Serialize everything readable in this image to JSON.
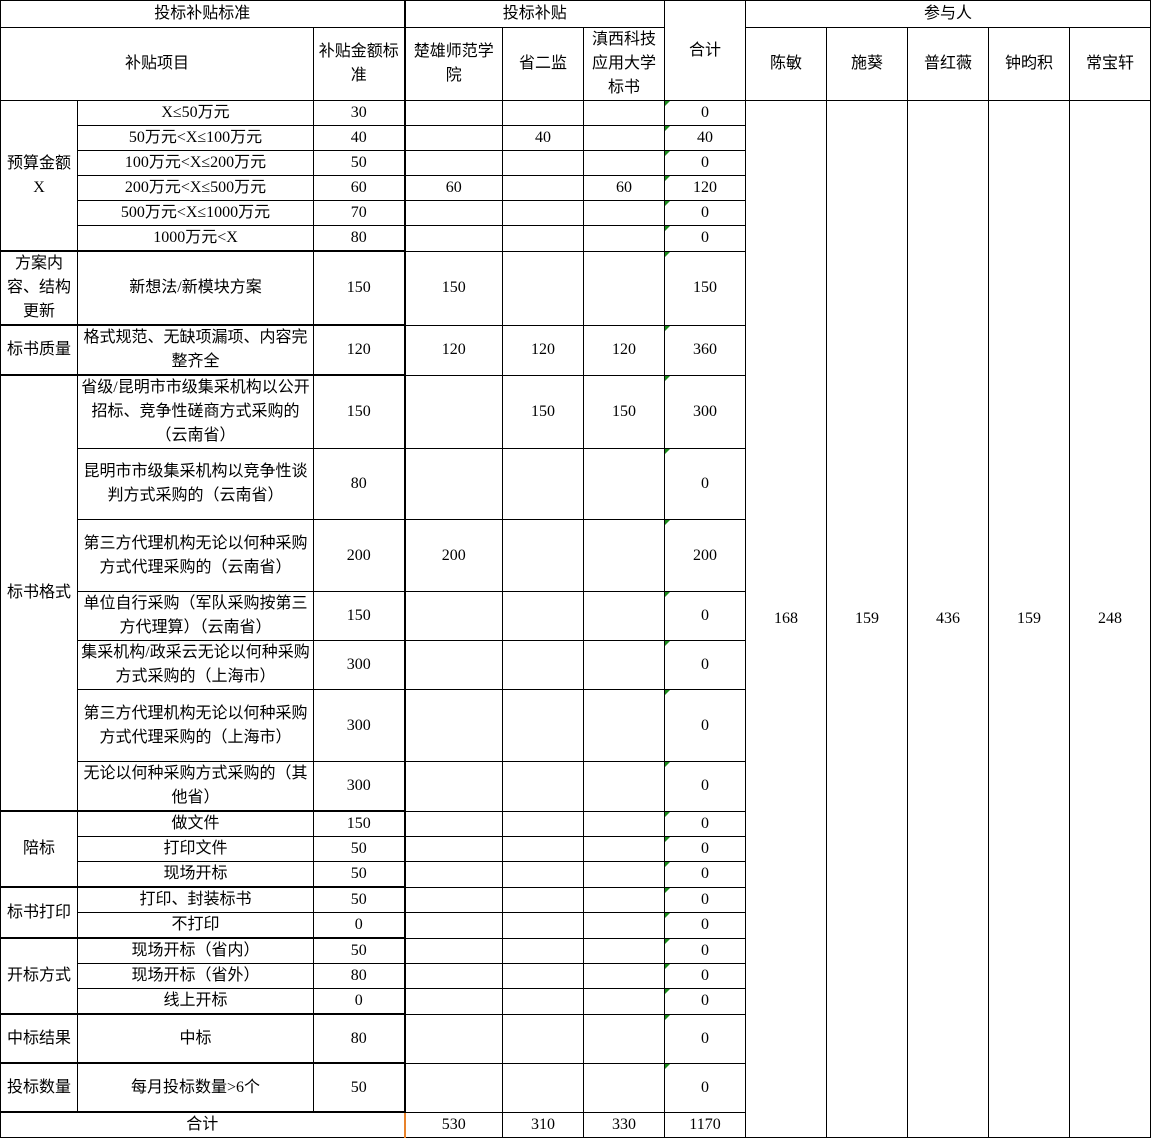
{
  "header": {
    "standard_group": "投标补贴标准",
    "subsidy_group": "投标补贴",
    "total": "合计",
    "participants_group": "参与人",
    "item": "补贴项目",
    "amount_standard": "补贴金额标准",
    "bids": [
      "楚雄师范学院",
      "省二监",
      "滇西科技应用大学标书"
    ]
  },
  "participants": [
    {
      "name": "陈敏",
      "value": "168"
    },
    {
      "name": "施葵",
      "value": "159"
    },
    {
      "name": "普红薇",
      "value": "436"
    },
    {
      "name": "钟昀积",
      "value": "159"
    },
    {
      "name": "常宝轩",
      "value": "248"
    }
  ],
  "groups": [
    {
      "name": "预算金额X",
      "rows": [
        {
          "item": "X≤50万元",
          "std": "30",
          "b": [
            "",
            "",
            ""
          ],
          "total": "0"
        },
        {
          "item": "50万元<X≤100万元",
          "std": "40",
          "b": [
            "",
            "40",
            ""
          ],
          "total": "40"
        },
        {
          "item": "100万元<X≤200万元",
          "std": "50",
          "b": [
            "",
            "",
            ""
          ],
          "total": "0"
        },
        {
          "item": "200万元<X≤500万元",
          "std": "60",
          "b": [
            "60",
            "",
            "60"
          ],
          "total": "120"
        },
        {
          "item": "500万元<X≤1000万元",
          "std": "70",
          "b": [
            "",
            "",
            ""
          ],
          "total": "0"
        },
        {
          "item": "1000万元<X",
          "std": "80",
          "b": [
            "",
            "",
            ""
          ],
          "total": "0"
        }
      ]
    },
    {
      "name": "方案内容、结构更新",
      "rows": [
        {
          "item": "新想法/新模块方案",
          "std": "150",
          "b": [
            "150",
            "",
            ""
          ],
          "total": "150"
        }
      ]
    },
    {
      "name": "标书质量",
      "rows": [
        {
          "item": "格式规范、无缺项漏项、内容完整齐全",
          "std": "120",
          "b": [
            "120",
            "120",
            "120"
          ],
          "total": "360"
        }
      ]
    },
    {
      "name": "标书格式",
      "rows": [
        {
          "item": "省级/昆明市市级集采机构以公开招标、竞争性磋商方式采购的（云南省）",
          "std": "150",
          "b": [
            "",
            "150",
            "150"
          ],
          "total": "300"
        },
        {
          "item": "昆明市市级集采机构以竞争性谈判方式采购的（云南省）",
          "std": "80",
          "b": [
            "",
            "",
            ""
          ],
          "total": "0"
        },
        {
          "item": "第三方代理机构无论以何种采购方式代理采购的（云南省）",
          "std": "200",
          "b": [
            "200",
            "",
            ""
          ],
          "total": "200"
        },
        {
          "item": "单位自行采购（军队采购按第三方代理算）（云南省）",
          "std": "150",
          "b": [
            "",
            "",
            ""
          ],
          "total": "0"
        },
        {
          "item": "集采机构/政采云无论以何种采购方式采购的（上海市）",
          "std": "300",
          "b": [
            "",
            "",
            ""
          ],
          "total": "0"
        },
        {
          "item": "第三方代理机构无论以何种采购方式代理采购的（上海市）",
          "std": "300",
          "b": [
            "",
            "",
            ""
          ],
          "total": "0"
        },
        {
          "item": "无论以何种采购方式采购的（其他省）",
          "std": "300",
          "b": [
            "",
            "",
            ""
          ],
          "total": "0"
        }
      ]
    },
    {
      "name": "陪标",
      "rows": [
        {
          "item": "做文件",
          "std": "150",
          "b": [
            "",
            "",
            ""
          ],
          "total": "0"
        },
        {
          "item": "打印文件",
          "std": "50",
          "b": [
            "",
            "",
            ""
          ],
          "total": "0"
        },
        {
          "item": "现场开标",
          "std": "50",
          "b": [
            "",
            "",
            ""
          ],
          "total": "0"
        }
      ]
    },
    {
      "name": "标书打印",
      "rows": [
        {
          "item": "打印、封装标书",
          "std": "50",
          "b": [
            "",
            "",
            ""
          ],
          "total": "0"
        },
        {
          "item": "不打印",
          "std": "0",
          "b": [
            "",
            "",
            ""
          ],
          "total": "0"
        }
      ]
    },
    {
      "name": "开标方式",
      "rows": [
        {
          "item": "现场开标（省内）",
          "std": "50",
          "b": [
            "",
            "",
            ""
          ],
          "total": "0"
        },
        {
          "item": "现场开标（省外）",
          "std": "80",
          "b": [
            "",
            "",
            ""
          ],
          "total": "0"
        },
        {
          "item": "线上开标",
          "std": "0",
          "b": [
            "",
            "",
            ""
          ],
          "total": "0"
        }
      ]
    },
    {
      "name": "中标结果",
      "rows": [
        {
          "item": "中标",
          "std": "80",
          "b": [
            "",
            "",
            ""
          ],
          "total": "0"
        }
      ]
    },
    {
      "name": "投标数量",
      "rows": [
        {
          "item": "每月投标数量>6个",
          "std": "50",
          "b": [
            "",
            "",
            ""
          ],
          "total": "0"
        }
      ]
    }
  ],
  "summary": {
    "label": "合计",
    "b": [
      "530",
      "310",
      "330"
    ],
    "total": "1170"
  }
}
